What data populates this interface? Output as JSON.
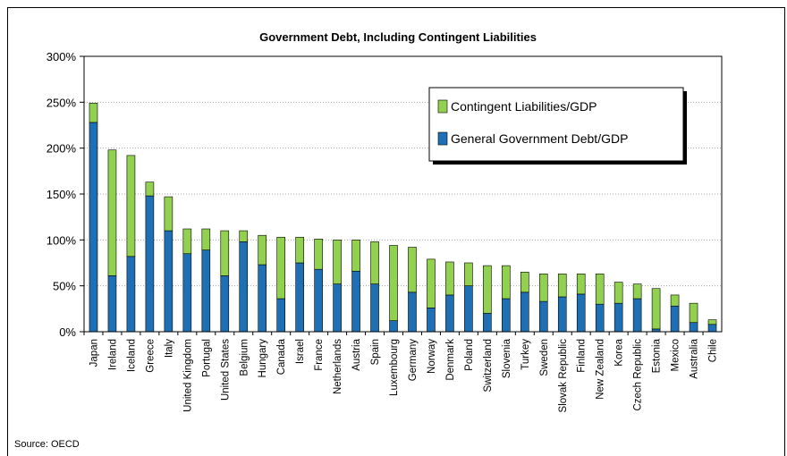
{
  "source": "Source: OECD",
  "chart_data": {
    "type": "bar",
    "stacked": true,
    "title": "Government Debt, Including Contingent Liabilities",
    "categories": [
      "Japan",
      "Ireland",
      "Iceland",
      "Greece",
      "Italy",
      "United Kingdom",
      "Portugal",
      "United States",
      "Belgium",
      "Hungary",
      "Canada",
      "Israel",
      "France",
      "Netherlands",
      "Austria",
      "Spain",
      "Luxembourg",
      "Germany",
      "Norway",
      "Denmark",
      "Poland",
      "Switzerland",
      "Slovenia",
      "Turkey",
      "Sweden",
      "Slovak Republic",
      "Finland",
      "New Zealand",
      "Korea",
      "Czech Republic",
      "Estonia",
      "Mexico",
      "Australia",
      "Chile"
    ],
    "series": [
      {
        "name": "General Government Debt/GDP",
        "color": "#1f6fb5",
        "values": [
          228,
          61,
          82,
          148,
          110,
          85,
          89,
          61,
          98,
          73,
          36,
          75,
          68,
          52,
          66,
          52,
          12,
          43,
          26,
          40,
          50,
          20,
          36,
          43,
          33,
          38,
          41,
          30,
          31,
          36,
          3,
          28,
          10,
          8
        ]
      },
      {
        "name": "Contingent Liabilities/GDP",
        "color": "#92d050",
        "values": [
          21,
          137,
          110,
          15,
          37,
          27,
          23,
          49,
          12,
          32,
          67,
          28,
          33,
          48,
          34,
          46,
          82,
          49,
          53,
          36,
          25,
          52,
          36,
          22,
          30,
          25,
          22,
          33,
          23,
          16,
          44,
          12,
          21,
          5
        ]
      }
    ],
    "legend_order": [
      "Contingent Liabilities/GDP",
      "General Government Debt/GDP"
    ],
    "ylim": [
      0,
      300
    ],
    "yticks": [
      "0%",
      "50%",
      "100%",
      "150%",
      "200%",
      "250%",
      "300%"
    ],
    "grid": true,
    "legend_position": "top-right"
  }
}
